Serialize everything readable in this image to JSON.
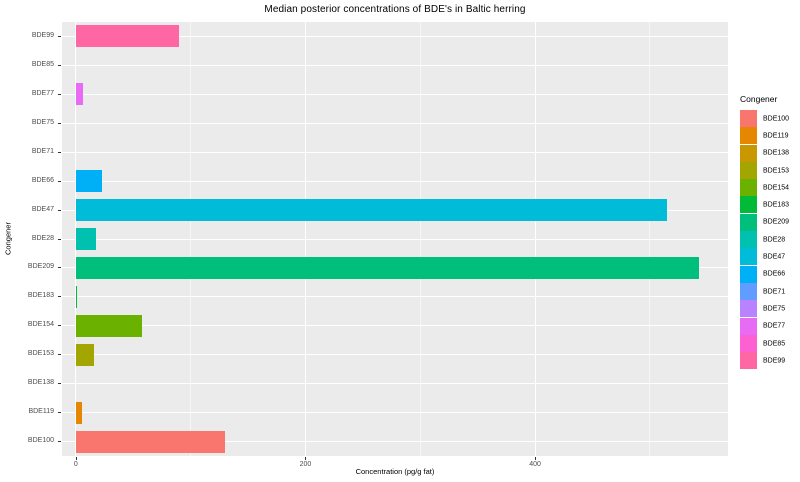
{
  "title": "Median posterior concentrations of BDE's in Baltic herring",
  "chart_data": {
    "type": "bar",
    "orientation": "horizontal",
    "title": "Median posterior concentrations of BDE's in Baltic herring",
    "xlabel": "Concentration (pg/g fat)",
    "ylabel": "Congener",
    "grid": true,
    "panel_background": "#EBEBEB",
    "grid_color": "#FFFFFF",
    "tick_label_color": "#4D4D4D",
    "xlim": [
      -12,
      568
    ],
    "xticks": [
      0,
      200,
      400
    ],
    "xticks_minor": [
      100,
      300,
      500
    ],
    "categories_top_to_bottom": [
      "BDE99",
      "BDE85",
      "BDE77",
      "BDE75",
      "BDE71",
      "BDE66",
      "BDE47",
      "BDE28",
      "BDE209",
      "BDE183",
      "BDE154",
      "BDE153",
      "BDE138",
      "BDE119",
      "BDE100"
    ],
    "values": [
      90,
      0,
      6,
      0,
      0,
      23,
      515,
      17.5,
      543,
      1.5,
      58,
      16,
      0,
      5,
      130
    ],
    "legend": {
      "title": "Congener",
      "position": "right",
      "entries": [
        {
          "label": "BDE100",
          "color": "#F8766D"
        },
        {
          "label": "BDE119",
          "color": "#E58700"
        },
        {
          "label": "BDE138",
          "color": "#C99800"
        },
        {
          "label": "BDE153",
          "color": "#A3A500"
        },
        {
          "label": "BDE154",
          "color": "#6BB100"
        },
        {
          "label": "BDE183",
          "color": "#00BA38"
        },
        {
          "label": "BDE209",
          "color": "#00BF7D"
        },
        {
          "label": "BDE28",
          "color": "#00C0AF"
        },
        {
          "label": "BDE47",
          "color": "#00BCD8"
        },
        {
          "label": "BDE66",
          "color": "#00B0F6"
        },
        {
          "label": "BDE71",
          "color": "#619CFF"
        },
        {
          "label": "BDE75",
          "color": "#B983FF"
        },
        {
          "label": "BDE77",
          "color": "#E76BF3"
        },
        {
          "label": "BDE85",
          "color": "#FD61D1"
        },
        {
          "label": "BDE99",
          "color": "#FF67A4"
        }
      ]
    }
  }
}
